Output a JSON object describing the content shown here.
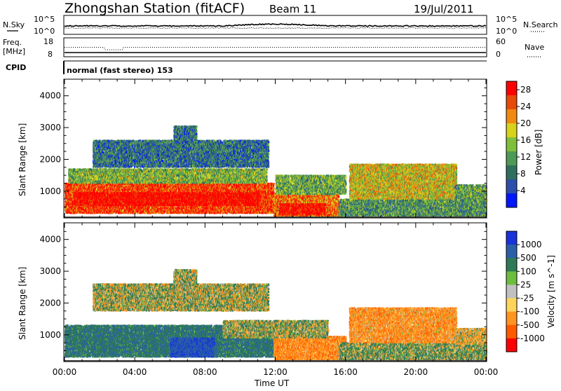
{
  "header": {
    "station": "Zhongshan Station (fitACF)",
    "beam": "Beam 11",
    "date": "19/Jul/2011"
  },
  "status": {
    "nsky_label": "N.Sky",
    "nsearch_label": "N.Search",
    "noise_ticks_left": [
      "10^5",
      "10^0"
    ],
    "noise_ticks_right": [
      "10^5",
      "10^0"
    ],
    "freq_label_1": "Freq.",
    "freq_label_2": "[MHz]",
    "freq_ticks": [
      "18",
      "8"
    ],
    "nave_label": "Nave",
    "nave_ticks": [
      "60",
      "0"
    ],
    "cpid_label": "CPID",
    "cpid_text": "normal (fast stereo) 153"
  },
  "colors": {
    "power": [
      "#0018ff",
      "#2b4faa",
      "#2e6f5e",
      "#4c9a55",
      "#7fc03a",
      "#d7d21a",
      "#f08a10",
      "#e84a08",
      "#ff0000"
    ],
    "velocity": [
      "#1733d9",
      "#2a5fa8",
      "#2e7a58",
      "#6cbe3c",
      "#c0c0c0",
      "#ffd45a",
      "#ff9420",
      "#ff5a00",
      "#ff0000"
    ]
  },
  "chart_data": [
    {
      "type": "heatmap",
      "panel": "power",
      "ylabel": "Slant Range [km]",
      "yticks": [
        "1000",
        "2000",
        "3000",
        "4000"
      ],
      "ylim": [
        180,
        4500
      ],
      "xlim": [
        "00:00",
        "24:00"
      ],
      "colorbar_label": "Power [dB]",
      "colorbar_ticks": [
        "4",
        "8",
        "12",
        "16",
        "20",
        "24",
        "28"
      ],
      "colorbar_range": [
        0,
        30
      ],
      "blobs": [
        {
          "t0": 0.0,
          "t1": 11.9,
          "r0": 300,
          "r1": 1250,
          "v": 26
        },
        {
          "t0": 0.2,
          "t1": 11.5,
          "r0": 1250,
          "r1": 1700,
          "v": 14
        },
        {
          "t0": 11.9,
          "t1": 15.6,
          "r0": 200,
          "r1": 900,
          "v": 23
        },
        {
          "t0": 12.0,
          "t1": 16.0,
          "r0": 900,
          "r1": 1500,
          "v": 13
        },
        {
          "t0": 1.6,
          "t1": 11.6,
          "r0": 1750,
          "r1": 2600,
          "v": 8
        },
        {
          "t0": 6.2,
          "t1": 7.5,
          "r0": 2400,
          "r1": 3050,
          "v": 8
        },
        {
          "t0": 15.6,
          "t1": 24.0,
          "r0": 200,
          "r1": 750,
          "v": 11
        },
        {
          "t0": 16.2,
          "t1": 22.3,
          "r0": 750,
          "r1": 1850,
          "v": 18
        },
        {
          "t0": 22.2,
          "t1": 24.0,
          "r0": 700,
          "r1": 1200,
          "v": 12
        }
      ],
      "overlays": [
        {
          "t0": 0.5,
          "t1": 11.0,
          "r0": 550,
          "r1": 950,
          "v": 30
        },
        {
          "t0": 12.2,
          "t1": 14.8,
          "r0": 250,
          "r1": 600,
          "v": 29
        }
      ]
    },
    {
      "type": "heatmap",
      "panel": "velocity",
      "ylabel": "Slant Range [km]",
      "yticks": [
        "1000",
        "2000",
        "3000",
        "4000"
      ],
      "ylim": [
        180,
        4500
      ],
      "xlim": [
        "00:00",
        "24:00"
      ],
      "xticks": [
        "00:00",
        "04:00",
        "08:00",
        "12:00",
        "16:00",
        "20:00",
        "00:00"
      ],
      "xlabel": "Time UT",
      "colorbar_label": "Velocity [m s^-1]",
      "colorbar_ticks": [
        "1000",
        "500",
        "100",
        "25",
        "-25",
        "-100",
        "-500",
        "-1000"
      ],
      "colorbar_range": [
        -1000,
        1000
      ],
      "blobs": [
        {
          "t0": 0.0,
          "t1": 11.9,
          "r0": 300,
          "r1": 1300,
          "v": 400
        },
        {
          "t0": 6.0,
          "t1": 8.5,
          "r0": 300,
          "r1": 900,
          "v": 900
        },
        {
          "t0": 11.9,
          "t1": 16.0,
          "r0": 200,
          "r1": 950,
          "v": -350
        },
        {
          "t0": 9.0,
          "t1": 15.0,
          "r0": 900,
          "r1": 1450,
          "v": 60
        },
        {
          "t0": 1.6,
          "t1": 11.6,
          "r0": 1750,
          "r1": 2600,
          "v": 40
        },
        {
          "t0": 6.2,
          "t1": 7.5,
          "r0": 2400,
          "r1": 3050,
          "v": 30
        },
        {
          "t0": 15.6,
          "t1": 24.0,
          "r0": 200,
          "r1": 750,
          "v": 120
        },
        {
          "t0": 16.2,
          "t1": 22.3,
          "r0": 750,
          "r1": 1850,
          "v": -300
        },
        {
          "t0": 22.2,
          "t1": 24.0,
          "r0": 700,
          "r1": 1200,
          "v": -150
        }
      ],
      "overlays": []
    }
  ]
}
